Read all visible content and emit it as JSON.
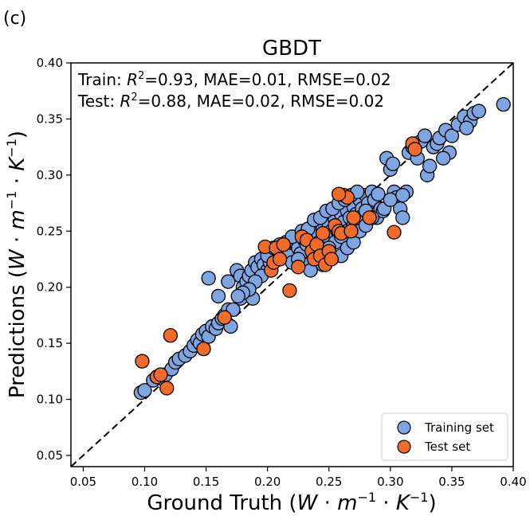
{
  "panel_label": "(c)",
  "chart_data": {
    "type": "scatter",
    "title": "GBDT",
    "xlabel": "Ground Truth",
    "ylabel": "Predictions",
    "unit": {
      "W": "W",
      "dot1": " · ",
      "m": "m",
      "sup_m": "−1",
      "dot2": " · ",
      "K": "K",
      "sup_k": "−1"
    },
    "xlim": [
      0.04,
      0.4
    ],
    "ylim": [
      0.04,
      0.4
    ],
    "xticks": [
      0.05,
      0.1,
      0.15,
      0.2,
      0.25,
      0.3,
      0.35,
      0.4
    ],
    "yticks": [
      0.05,
      0.1,
      0.15,
      0.2,
      0.25,
      0.3,
      0.35,
      0.4
    ],
    "xtick_labels": [
      "0.05",
      "0.10",
      "0.15",
      "0.20",
      "0.25",
      "0.30",
      "0.35",
      "0.40"
    ],
    "ytick_labels": [
      "0.05",
      "0.10",
      "0.15",
      "0.20",
      "0.25",
      "0.30",
      "0.35",
      "0.40"
    ],
    "reference_line": "y = x (dashed)",
    "annotations": {
      "train": {
        "prefix": "Train: ",
        "r2_label": "R",
        "r2_sup": "2",
        "rest": "=0.93, MAE=0.01, RMSE=0.02"
      },
      "test": {
        "prefix": "Test: ",
        "r2_label": "R",
        "r2_sup": "2",
        "rest": "=0.88, MAE=0.02, RMSE=0.02"
      }
    },
    "legend": {
      "position": "lower-right",
      "entries": [
        "Training set",
        "Test set"
      ]
    },
    "series": [
      {
        "name": "Training set",
        "color": "#7fa4e2",
        "points": [
          [
            0.097,
            0.106
          ],
          [
            0.1,
            0.108
          ],
          [
            0.107,
            0.117
          ],
          [
            0.11,
            0.12
          ],
          [
            0.113,
            0.119
          ],
          [
            0.117,
            0.122
          ],
          [
            0.122,
            0.127
          ],
          [
            0.125,
            0.133
          ],
          [
            0.128,
            0.136
          ],
          [
            0.133,
            0.139
          ],
          [
            0.137,
            0.143
          ],
          [
            0.14,
            0.148
          ],
          [
            0.143,
            0.153
          ],
          [
            0.145,
            0.15
          ],
          [
            0.147,
            0.158
          ],
          [
            0.15,
            0.161
          ],
          [
            0.152,
            0.156
          ],
          [
            0.155,
            0.165
          ],
          [
            0.158,
            0.163
          ],
          [
            0.16,
            0.168
          ],
          [
            0.163,
            0.172
          ],
          [
            0.165,
            0.175
          ],
          [
            0.17,
            0.165
          ],
          [
            0.168,
            0.205
          ],
          [
            0.16,
            0.192
          ],
          [
            0.152,
            0.208
          ],
          [
            0.175,
            0.215
          ],
          [
            0.178,
            0.21
          ],
          [
            0.18,
            0.2
          ],
          [
            0.183,
            0.205
          ],
          [
            0.185,
            0.21
          ],
          [
            0.187,
            0.215
          ],
          [
            0.19,
            0.222
          ],
          [
            0.192,
            0.218
          ],
          [
            0.178,
            0.19
          ],
          [
            0.188,
            0.19
          ],
          [
            0.195,
            0.225
          ],
          [
            0.197,
            0.22
          ],
          [
            0.2,
            0.215
          ],
          [
            0.202,
            0.222
          ],
          [
            0.205,
            0.228
          ],
          [
            0.207,
            0.232
          ],
          [
            0.21,
            0.225
          ],
          [
            0.212,
            0.23
          ],
          [
            0.215,
            0.235
          ],
          [
            0.217,
            0.228
          ],
          [
            0.22,
            0.222
          ],
          [
            0.222,
            0.24
          ],
          [
            0.225,
            0.235
          ],
          [
            0.227,
            0.23
          ],
          [
            0.23,
            0.242
          ],
          [
            0.232,
            0.238
          ],
          [
            0.235,
            0.245
          ],
          [
            0.237,
            0.233
          ],
          [
            0.24,
            0.248
          ],
          [
            0.242,
            0.24
          ],
          [
            0.245,
            0.252
          ],
          [
            0.247,
            0.246
          ],
          [
            0.25,
            0.255
          ],
          [
            0.252,
            0.25
          ],
          [
            0.255,
            0.26
          ],
          [
            0.257,
            0.25
          ],
          [
            0.26,
            0.265
          ],
          [
            0.262,
            0.258
          ],
          [
            0.265,
            0.268
          ],
          [
            0.267,
            0.262
          ],
          [
            0.27,
            0.272
          ],
          [
            0.272,
            0.265
          ],
          [
            0.275,
            0.278
          ],
          [
            0.277,
            0.27
          ],
          [
            0.28,
            0.282
          ],
          [
            0.282,
            0.275
          ],
          [
            0.285,
            0.285
          ],
          [
            0.287,
            0.278
          ],
          [
            0.289,
            0.262
          ],
          [
            0.29,
            0.283
          ],
          [
            0.292,
            0.27
          ],
          [
            0.294,
            0.268
          ],
          [
            0.297,
            0.315
          ],
          [
            0.3,
            0.305
          ],
          [
            0.302,
            0.31
          ],
          [
            0.303,
            0.285
          ],
          [
            0.305,
            0.28
          ],
          [
            0.308,
            0.27
          ],
          [
            0.31,
            0.262
          ],
          [
            0.313,
            0.285
          ],
          [
            0.315,
            0.32
          ],
          [
            0.318,
            0.325
          ],
          [
            0.32,
            0.328
          ],
          [
            0.322,
            0.315
          ],
          [
            0.325,
            0.33
          ],
          [
            0.328,
            0.335
          ],
          [
            0.33,
            0.3
          ],
          [
            0.332,
            0.308
          ],
          [
            0.335,
            0.325
          ],
          [
            0.338,
            0.328
          ],
          [
            0.34,
            0.333
          ],
          [
            0.345,
            0.34
          ],
          [
            0.348,
            0.32
          ],
          [
            0.35,
            0.335
          ],
          [
            0.355,
            0.345
          ],
          [
            0.36,
            0.352
          ],
          [
            0.365,
            0.348
          ],
          [
            0.368,
            0.355
          ],
          [
            0.372,
            0.357
          ],
          [
            0.392,
            0.363
          ],
          [
            0.362,
            0.342
          ],
          [
            0.343,
            0.315
          ],
          [
            0.24,
            0.225
          ],
          [
            0.245,
            0.22
          ],
          [
            0.25,
            0.23
          ],
          [
            0.255,
            0.24
          ],
          [
            0.26,
            0.245
          ],
          [
            0.265,
            0.25
          ],
          [
            0.27,
            0.255
          ],
          [
            0.275,
            0.262
          ],
          [
            0.28,
            0.268
          ],
          [
            0.23,
            0.22
          ],
          [
            0.225,
            0.225
          ],
          [
            0.235,
            0.215
          ],
          [
            0.25,
            0.235
          ],
          [
            0.26,
            0.228
          ],
          [
            0.265,
            0.235
          ],
          [
            0.27,
            0.24
          ],
          [
            0.275,
            0.25
          ],
          [
            0.28,
            0.255
          ],
          [
            0.285,
            0.262
          ],
          [
            0.295,
            0.27
          ],
          [
            0.3,
            0.278
          ],
          [
            0.31,
            0.282
          ],
          [
            0.215,
            0.24
          ],
          [
            0.22,
            0.245
          ],
          [
            0.228,
            0.25
          ],
          [
            0.233,
            0.252
          ],
          [
            0.238,
            0.26
          ],
          [
            0.243,
            0.262
          ],
          [
            0.248,
            0.268
          ],
          [
            0.253,
            0.27
          ],
          [
            0.258,
            0.275
          ],
          [
            0.263,
            0.278
          ],
          [
            0.268,
            0.282
          ],
          [
            0.273,
            0.285
          ],
          [
            0.2,
            0.228
          ],
          [
            0.205,
            0.235
          ],
          [
            0.21,
            0.238
          ],
          [
            0.195,
            0.21
          ],
          [
            0.19,
            0.205
          ],
          [
            0.185,
            0.198
          ],
          [
            0.18,
            0.195
          ],
          [
            0.176,
            0.192
          ],
          [
            0.168,
            0.18
          ],
          [
            0.172,
            0.18
          ]
        ]
      },
      {
        "name": "Test set",
        "color": "#f26b2b",
        "points": [
          [
            0.098,
            0.134
          ],
          [
            0.11,
            0.12
          ],
          [
            0.113,
            0.122
          ],
          [
            0.118,
            0.11
          ],
          [
            0.121,
            0.157
          ],
          [
            0.148,
            0.145
          ],
          [
            0.165,
            0.173
          ],
          [
            0.198,
            0.236
          ],
          [
            0.203,
            0.215
          ],
          [
            0.205,
            0.222
          ],
          [
            0.207,
            0.235
          ],
          [
            0.21,
            0.225
          ],
          [
            0.213,
            0.238
          ],
          [
            0.218,
            0.197
          ],
          [
            0.225,
            0.218
          ],
          [
            0.228,
            0.245
          ],
          [
            0.232,
            0.242
          ],
          [
            0.236,
            0.232
          ],
          [
            0.238,
            0.225
          ],
          [
            0.24,
            0.238
          ],
          [
            0.243,
            0.228
          ],
          [
            0.245,
            0.248
          ],
          [
            0.247,
            0.22
          ],
          [
            0.25,
            0.232
          ],
          [
            0.252,
            0.225
          ],
          [
            0.255,
            0.255
          ],
          [
            0.258,
            0.25
          ],
          [
            0.26,
            0.248
          ],
          [
            0.262,
            0.282
          ],
          [
            0.265,
            0.28
          ],
          [
            0.268,
            0.25
          ],
          [
            0.27,
            0.262
          ],
          [
            0.258,
            0.283
          ],
          [
            0.283,
            0.262
          ],
          [
            0.303,
            0.249
          ],
          [
            0.318,
            0.328
          ],
          [
            0.32,
            0.323
          ]
        ]
      }
    ]
  }
}
